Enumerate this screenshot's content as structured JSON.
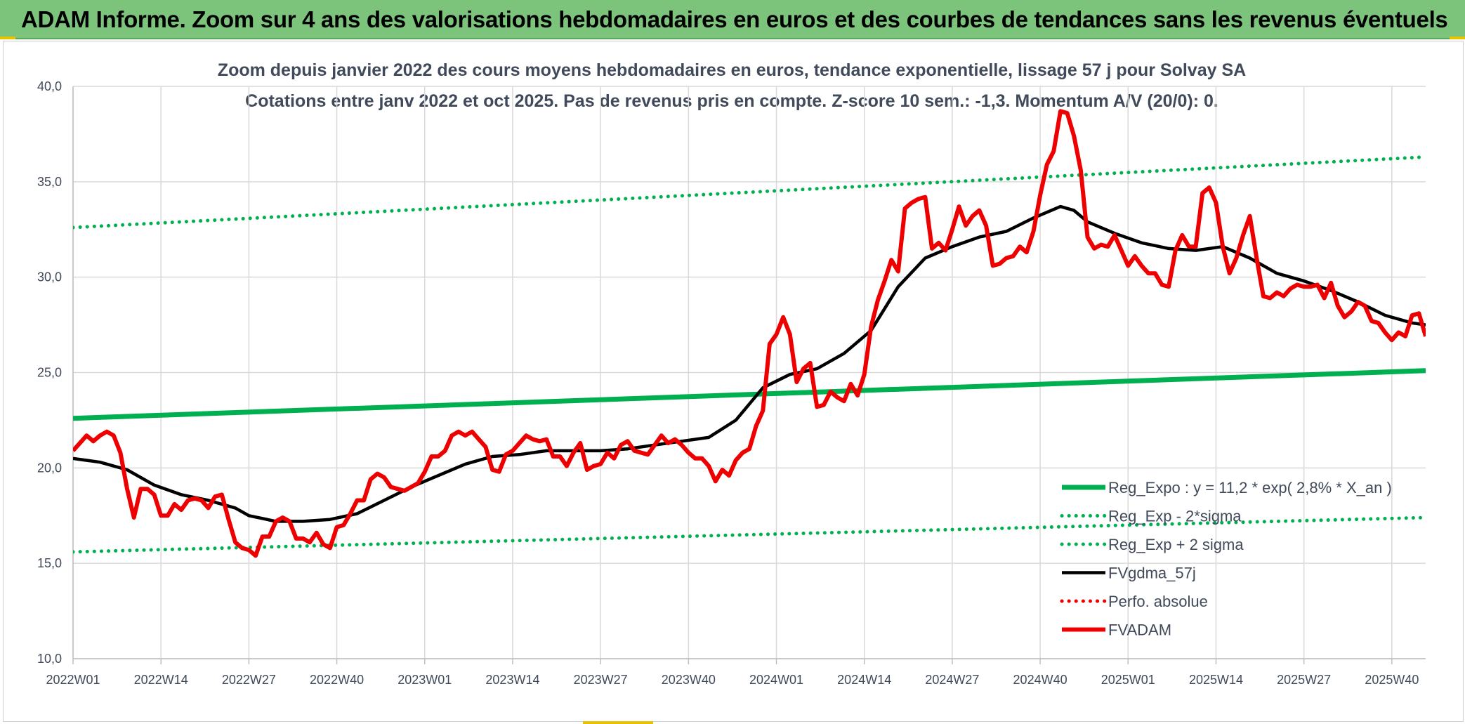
{
  "header": {
    "title": "ADAM Informe. Zoom sur 4 ans des valorisations hebdomadaires en euros et des courbes de tendances sans les revenus éventuels"
  },
  "chart_data": {
    "type": "line",
    "title": "Zoom depuis janvier 2022 des cours moyens hebdomadaires en euros, tendance exponentielle, lissage 57 j pour Solvay SA",
    "subtitle": "Cotations entre janv 2022 et oct 2025. Pas de revenus pris en compte. Z-score 10 sem.: -1,3. Momentum A/V (20/0): 0.",
    "xlabel": "",
    "ylabel": "",
    "ylim": [
      10,
      40
    ],
    "yticks": [
      "10,0",
      "15,0",
      "20,0",
      "25,0",
      "30,0",
      "35,0",
      "40,0"
    ],
    "x_tick_labels": [
      "2022W01",
      "2022W14",
      "2022W27",
      "2022W40",
      "2023W01",
      "2023W14",
      "2023W27",
      "2023W40",
      "2024W01",
      "2024W14",
      "2024W27",
      "2024W40",
      "2025W01",
      "2025W14",
      "2025W27",
      "2025W40"
    ],
    "x_unit": "week index since 2022W01",
    "xlim": [
      0,
      200
    ],
    "x_tick_positions": [
      0,
      13,
      26,
      39,
      52,
      65,
      78,
      91,
      104,
      117,
      130,
      143,
      156,
      169,
      182,
      195
    ],
    "grid": true,
    "legend_position": "bottom-right",
    "colors": {
      "green": "#00b050",
      "black": "#000000",
      "red": "#ee0000",
      "grid": "#d9d9d9",
      "text": "#404a5a"
    },
    "series": [
      {
        "name": "Reg_Expo : y = 11,2 * exp( 2,8% *  X_an )",
        "style": "solid",
        "color": "#00b050",
        "x": [
          0,
          200
        ],
        "values": [
          22.6,
          25.1
        ]
      },
      {
        "name": "Reg_Exp - 2*sigma",
        "style": "dotted",
        "color": "#00b050",
        "x": [
          0,
          200
        ],
        "values": [
          15.6,
          17.4
        ]
      },
      {
        "name": "Reg_Exp + 2 sigma",
        "style": "dotted",
        "color": "#00b050",
        "x": [
          0,
          200
        ],
        "values": [
          32.6,
          36.3
        ]
      },
      {
        "name": "FVgdma_57j",
        "style": "solid",
        "color": "#000000",
        "x": [
          0,
          4,
          8,
          12,
          16,
          20,
          24,
          26,
          30,
          34,
          38,
          42,
          46,
          50,
          54,
          58,
          62,
          66,
          70,
          74,
          78,
          82,
          86,
          90,
          94,
          98,
          102,
          106,
          110,
          114,
          118,
          122,
          126,
          130,
          134,
          138,
          142,
          146,
          148,
          150,
          154,
          158,
          162,
          166,
          170,
          174,
          178,
          182,
          186,
          190,
          194,
          198,
          200
        ],
        "values": [
          20.5,
          20.3,
          19.9,
          19.1,
          18.6,
          18.3,
          17.9,
          17.5,
          17.2,
          17.2,
          17.3,
          17.6,
          18.3,
          19.0,
          19.6,
          20.2,
          20.6,
          20.7,
          20.9,
          20.9,
          20.9,
          21.0,
          21.2,
          21.4,
          21.6,
          22.5,
          24.2,
          24.9,
          25.2,
          26.0,
          27.2,
          29.5,
          31.0,
          31.6,
          32.1,
          32.4,
          33.1,
          33.7,
          33.5,
          32.9,
          32.3,
          31.8,
          31.5,
          31.4,
          31.6,
          31.0,
          30.2,
          29.8,
          29.3,
          28.7,
          28.0,
          27.6,
          27.5
        ]
      },
      {
        "name": "Perfo. absolue",
        "style": "dotted",
        "color": "#ee0000",
        "x": [],
        "values": []
      },
      {
        "name": "FVADAM",
        "style": "solid-thick",
        "color": "#ee0000",
        "x": [
          0,
          2,
          3,
          4,
          5,
          6,
          7,
          8,
          9,
          10,
          11,
          12,
          13,
          14,
          15,
          16,
          17,
          18,
          19,
          20,
          21,
          22,
          23,
          24,
          25,
          26,
          27,
          28,
          29,
          30,
          31,
          32,
          33,
          34,
          35,
          36,
          37,
          38,
          39,
          40,
          41,
          42,
          43,
          44,
          45,
          46,
          47,
          48,
          49,
          50,
          51,
          52,
          53,
          54,
          55,
          56,
          57,
          58,
          59,
          60,
          61,
          62,
          63,
          64,
          65,
          66,
          67,
          68,
          69,
          70,
          71,
          72,
          73,
          74,
          75,
          76,
          77,
          78,
          79,
          80,
          81,
          82,
          83,
          84,
          85,
          86,
          87,
          88,
          89,
          90,
          91,
          92,
          93,
          94,
          95,
          96,
          97,
          98,
          99,
          100,
          101,
          102,
          103,
          104,
          105,
          106,
          107,
          108,
          109,
          110,
          111,
          112,
          113,
          114,
          115,
          116,
          117,
          118,
          119,
          120,
          121,
          122,
          123,
          124,
          125,
          126,
          127,
          128,
          129,
          130,
          131,
          132,
          133,
          134,
          135,
          136,
          137,
          138,
          139,
          140,
          141,
          142,
          143,
          144,
          145,
          146,
          147,
          148,
          149,
          150,
          151,
          152,
          153,
          154,
          155,
          156,
          157,
          158,
          159,
          160,
          161,
          162,
          163,
          164,
          165,
          166,
          167,
          168,
          169,
          170,
          171,
          172,
          173,
          174,
          175,
          176,
          177,
          178,
          179,
          180,
          181,
          182,
          183,
          184,
          185,
          186,
          187,
          188,
          189,
          190,
          191,
          192,
          193,
          194,
          195,
          196,
          197,
          198,
          199,
          200
        ],
        "values": [
          20.9,
          21.7,
          21.4,
          21.7,
          21.9,
          21.7,
          20.8,
          18.9,
          17.4,
          18.9,
          18.9,
          18.6,
          17.5,
          17.5,
          18.1,
          17.8,
          18.3,
          18.4,
          18.3,
          17.9,
          18.5,
          18.6,
          17.3,
          16.1,
          15.8,
          15.7,
          15.4,
          16.4,
          16.4,
          17.2,
          17.4,
          17.2,
          16.3,
          16.3,
          16.1,
          16.6,
          16.0,
          15.8,
          16.9,
          17.0,
          17.6,
          18.3,
          18.3,
          19.4,
          19.7,
          19.5,
          19.0,
          18.9,
          18.8,
          19.0,
          19.2,
          19.8,
          20.6,
          20.6,
          20.9,
          21.7,
          21.9,
          21.7,
          21.9,
          21.5,
          21.1,
          19.9,
          19.8,
          20.7,
          20.9,
          21.3,
          21.7,
          21.5,
          21.4,
          21.5,
          20.6,
          20.6,
          20.1,
          20.8,
          21.3,
          19.9,
          20.1,
          20.2,
          20.8,
          20.5,
          21.2,
          21.4,
          20.9,
          20.8,
          20.7,
          21.2,
          21.7,
          21.3,
          21.5,
          21.2,
          20.8,
          20.5,
          20.5,
          20.1,
          19.3,
          19.9,
          19.6,
          20.4,
          20.8,
          21.0,
          22.2,
          23.0,
          26.5,
          27.0,
          27.9,
          27.0,
          24.5,
          25.2,
          25.5,
          23.2,
          23.3,
          24.0,
          23.7,
          23.5,
          24.4,
          23.8,
          24.9,
          27.4,
          28.8,
          29.8,
          30.9,
          30.3,
          33.6,
          33.9,
          34.1,
          34.2,
          31.5,
          31.8,
          31.4,
          32.5,
          33.7,
          32.7,
          33.2,
          33.5,
          32.7,
          30.6,
          30.7,
          31.0,
          31.1,
          31.6,
          31.3,
          32.4,
          34.3,
          35.9,
          36.6,
          38.7,
          38.6,
          37.4,
          35.6,
          32.1,
          31.5,
          31.7,
          31.6,
          32.2,
          31.4,
          30.6,
          31.1,
          30.6,
          30.2,
          30.2,
          29.6,
          29.5,
          31.4,
          32.2,
          31.6,
          31.6,
          34.4,
          34.7,
          33.9,
          31.6,
          30.2,
          31.0,
          32.2,
          33.2,
          31.0,
          29.0,
          28.9,
          29.2,
          29.0,
          29.4,
          29.6,
          29.5,
          29.5,
          29.6,
          28.9,
          29.7,
          28.5,
          27.9,
          28.2,
          28.7,
          28.5,
          27.7,
          27.6,
          27.1,
          26.7,
          27.1,
          26.9,
          28.0,
          28.1,
          26.9
        ]
      }
    ]
  }
}
